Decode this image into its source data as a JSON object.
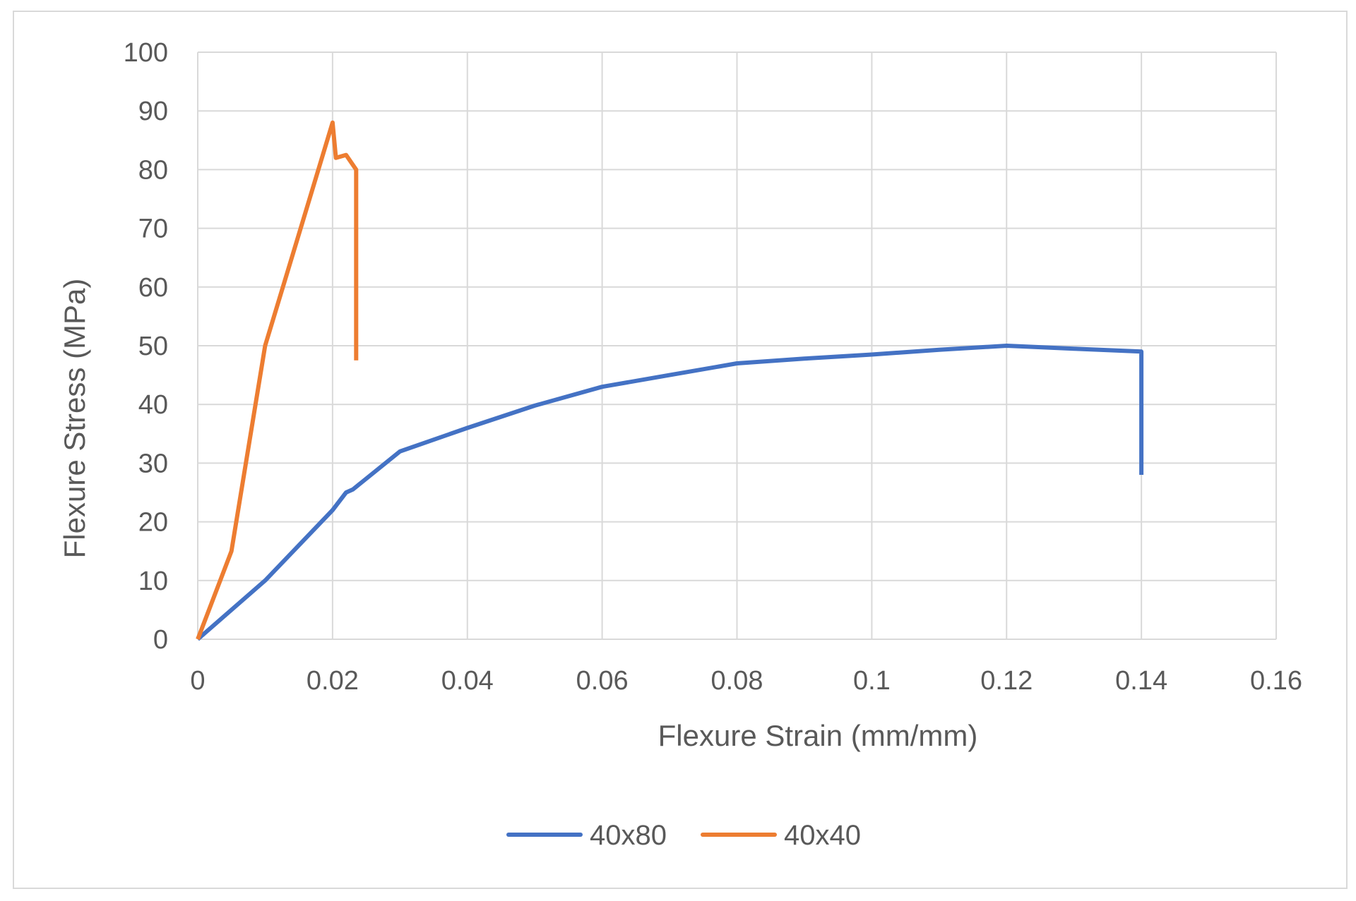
{
  "chart_data": {
    "type": "line",
    "title": "",
    "xlabel": "Flexure Strain (mm/mm)",
    "ylabel": "Flexure Stress   (MPa)",
    "xlim": [
      0,
      0.16
    ],
    "ylim": [
      0,
      100
    ],
    "x_ticks": [
      0,
      0.02,
      0.04,
      0.06,
      0.08,
      0.1,
      0.12,
      0.14,
      0.16
    ],
    "x_tick_labels": [
      "0",
      "0.02",
      "0.04",
      "0.06",
      "0.08",
      "0.1",
      "0.12",
      "0.14",
      "0.16"
    ],
    "y_ticks": [
      0,
      10,
      20,
      30,
      40,
      50,
      60,
      70,
      80,
      90,
      100
    ],
    "y_tick_labels": [
      "0",
      "10",
      "20",
      "30",
      "40",
      "50",
      "60",
      "70",
      "80",
      "90",
      "100"
    ],
    "grid": true,
    "legend_position": "bottom",
    "series": [
      {
        "name": "40x80",
        "color": "#4472c4",
        "points": [
          [
            0,
            0
          ],
          [
            0.01,
            10
          ],
          [
            0.02,
            22
          ],
          [
            0.022,
            25
          ],
          [
            0.023,
            25.5
          ],
          [
            0.03,
            32
          ],
          [
            0.04,
            36
          ],
          [
            0.05,
            39.8
          ],
          [
            0.06,
            43
          ],
          [
            0.07,
            45
          ],
          [
            0.08,
            47
          ],
          [
            0.09,
            47.8
          ],
          [
            0.1,
            48.5
          ],
          [
            0.11,
            49.3
          ],
          [
            0.12,
            50
          ],
          [
            0.13,
            49.5
          ],
          [
            0.14,
            49
          ],
          [
            0.14,
            28
          ]
        ]
      },
      {
        "name": "40x40",
        "color": "#ed7d31",
        "points": [
          [
            0,
            0
          ],
          [
            0.005,
            15
          ],
          [
            0.01,
            50
          ],
          [
            0.015,
            69
          ],
          [
            0.02,
            88
          ],
          [
            0.0205,
            82
          ],
          [
            0.022,
            82.5
          ],
          [
            0.0235,
            80
          ],
          [
            0.0235,
            47.5
          ]
        ]
      }
    ]
  }
}
